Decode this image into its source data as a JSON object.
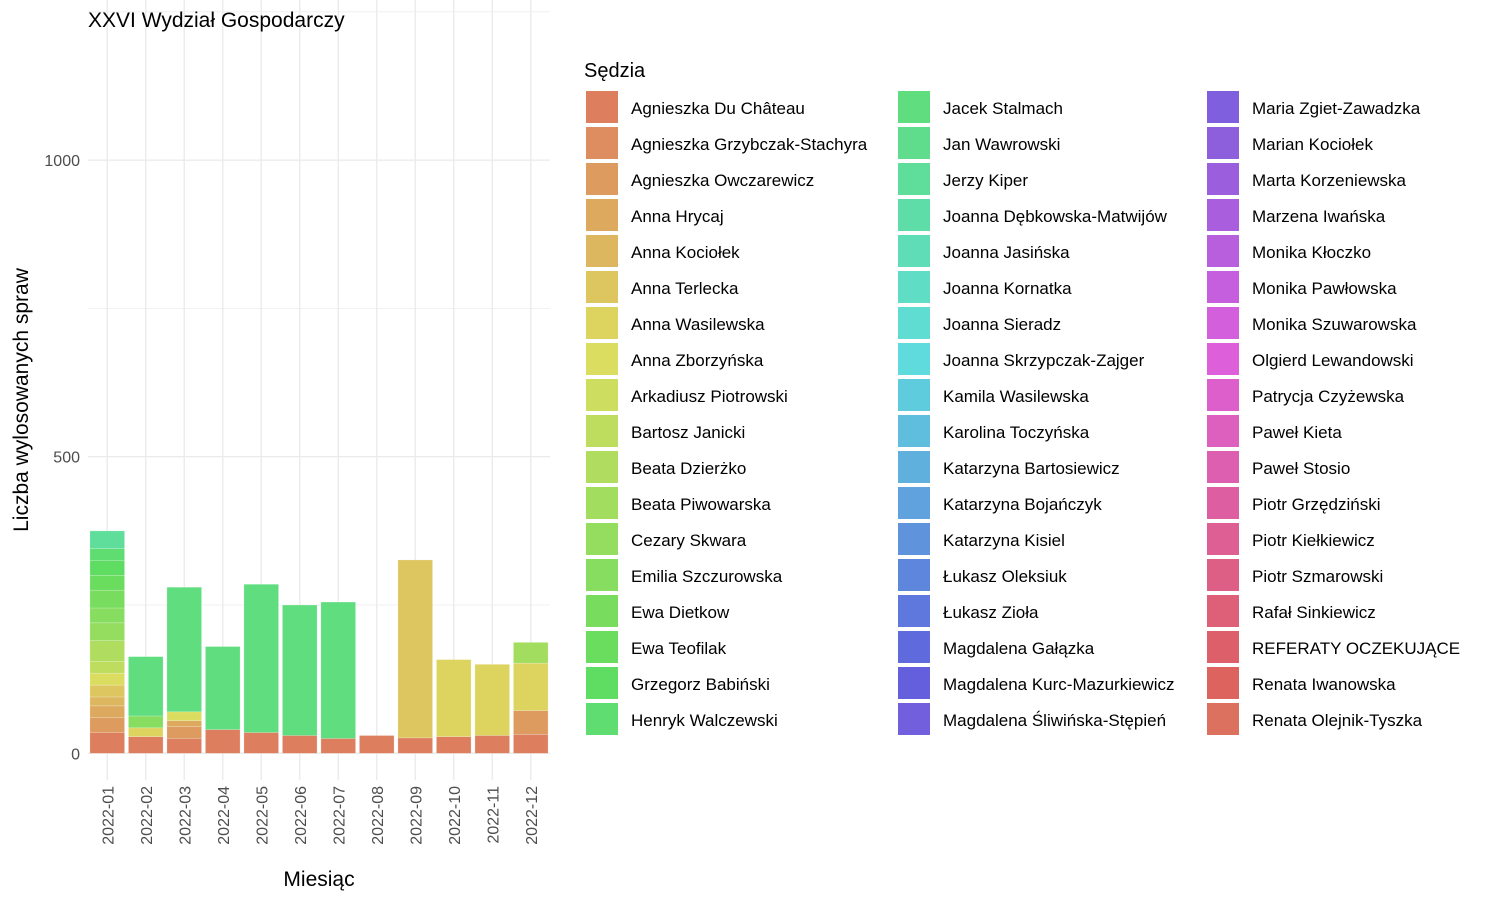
{
  "chart_data": {
    "type": "bar",
    "stacked": true,
    "title": "XXVI Wydział Gospodarczy",
    "xlabel": "Miesiąc",
    "ylabel": "Liczba wylosowanych spraw",
    "ylim": [
      -45,
      1270
    ],
    "yticks": [
      0,
      500,
      1000
    ],
    "grid": true,
    "legend_title": "Sędzia",
    "legend_position": "right",
    "categories": [
      "2022-01",
      "2022-02",
      "2022-03",
      "2022-04",
      "2022-05",
      "2022-06",
      "2022-07",
      "2022-08",
      "2022-09",
      "2022-10",
      "2022-11",
      "2022-12"
    ],
    "series": [
      {
        "name": "Agnieszka Du Château",
        "values": [
          35,
          28,
          25,
          40,
          35,
          30,
          25,
          30,
          26,
          28,
          30,
          32
        ]
      },
      {
        "name": "Agnieszka Grzybczak-Stachyra",
        "values": [
          0,
          0,
          0,
          0,
          0,
          0,
          0,
          0,
          0,
          0,
          0,
          0
        ]
      },
      {
        "name": "Agnieszka Owczarewicz",
        "values": [
          25,
          0,
          20,
          0,
          0,
          0,
          0,
          0,
          0,
          0,
          0,
          40
        ]
      },
      {
        "name": "Anna Hrycaj",
        "values": [
          20,
          0,
          10,
          0,
          0,
          0,
          0,
          0,
          0,
          0,
          0,
          0
        ]
      },
      {
        "name": "Anna Kociołek",
        "values": [
          15,
          0,
          0,
          0,
          0,
          0,
          0,
          0,
          0,
          0,
          0,
          0
        ]
      },
      {
        "name": "Anna Terlecka",
        "values": [
          20,
          0,
          0,
          0,
          0,
          0,
          0,
          0,
          300,
          0,
          0,
          0
        ]
      },
      {
        "name": "Anna Wasilewska",
        "values": [
          0,
          15,
          0,
          0,
          0,
          0,
          0,
          0,
          0,
          130,
          120,
          80
        ]
      },
      {
        "name": "Anna Zborzyńska",
        "values": [
          20,
          0,
          15,
          0,
          0,
          0,
          0,
          0,
          0,
          0,
          0,
          0
        ]
      },
      {
        "name": "Arkadiusz Piotrowski",
        "values": [
          0,
          0,
          0,
          0,
          0,
          0,
          0,
          0,
          0,
          0,
          0,
          0
        ]
      },
      {
        "name": "Bartosz Janicki",
        "values": [
          20,
          0,
          0,
          0,
          0,
          0,
          0,
          0,
          0,
          0,
          0,
          0
        ]
      },
      {
        "name": "Beata Dzierżko",
        "values": [
          35,
          0,
          0,
          0,
          0,
          0,
          0,
          0,
          0,
          0,
          0,
          0
        ]
      },
      {
        "name": "Beata Piwowarska",
        "values": [
          0,
          0,
          0,
          0,
          0,
          0,
          0,
          0,
          0,
          0,
          0,
          35
        ]
      },
      {
        "name": "Cezary Skwara",
        "values": [
          30,
          0,
          0,
          0,
          0,
          0,
          0,
          0,
          0,
          0,
          0,
          0
        ]
      },
      {
        "name": "Emilia Szczurowska",
        "values": [
          25,
          20,
          0,
          0,
          0,
          0,
          0,
          0,
          0,
          0,
          0,
          0
        ]
      },
      {
        "name": "Ewa Dietkow",
        "values": [
          30,
          0,
          0,
          0,
          0,
          0,
          0,
          0,
          0,
          0,
          0,
          0
        ]
      },
      {
        "name": "Ewa Teofilak",
        "values": [
          25,
          0,
          0,
          0,
          0,
          0,
          0,
          0,
          0,
          0,
          0,
          0
        ]
      },
      {
        "name": "Grzegorz Babiński",
        "values": [
          25,
          0,
          0,
          0,
          0,
          0,
          0,
          0,
          0,
          0,
          0,
          0
        ]
      },
      {
        "name": "Henryk Walczewski",
        "values": [
          20,
          0,
          0,
          0,
          0,
          0,
          0,
          0,
          0,
          0,
          0,
          0
        ]
      },
      {
        "name": "Jacek Stalmach",
        "values": [
          0,
          100,
          210,
          140,
          250,
          220,
          230,
          0,
          0,
          0,
          0,
          0
        ]
      },
      {
        "name": "Jan Wawrowski",
        "values": [
          0,
          0,
          0,
          0,
          0,
          0,
          0,
          0,
          0,
          0,
          0,
          0
        ]
      },
      {
        "name": "Jerzy Kiper",
        "values": [
          30,
          0,
          0,
          0,
          0,
          0,
          0,
          0,
          0,
          0,
          0,
          0
        ]
      },
      {
        "name": "Joanna Dębkowska-Matwijów",
        "values": [
          0,
          0,
          0,
          0,
          0,
          0,
          0,
          0,
          0,
          0,
          0,
          0
        ]
      },
      {
        "name": "Joanna Jasińska",
        "values": [
          0,
          0,
          0,
          0,
          0,
          0,
          0,
          0,
          0,
          0,
          0,
          0
        ]
      },
      {
        "name": "Joanna Kornatka",
        "values": [
          0,
          0,
          0,
          0,
          0,
          0,
          0,
          0,
          0,
          0,
          0,
          0
        ]
      },
      {
        "name": "Joanna Sieradz",
        "values": [
          0,
          0,
          0,
          0,
          0,
          0,
          0,
          0,
          0,
          0,
          0,
          0
        ]
      },
      {
        "name": "Joanna Skrzypczak-Zajger",
        "values": [
          0,
          0,
          0,
          0,
          0,
          0,
          0,
          0,
          0,
          0,
          0,
          0
        ]
      },
      {
        "name": "Kamila Wasilewska",
        "values": [
          0,
          0,
          0,
          0,
          0,
          0,
          0,
          0,
          0,
          0,
          0,
          0
        ]
      },
      {
        "name": "Karolina Toczyńska",
        "values": [
          0,
          0,
          0,
          0,
          0,
          0,
          0,
          0,
          0,
          0,
          0,
          0
        ]
      },
      {
        "name": "Katarzyna Bartosiewicz",
        "values": [
          0,
          0,
          0,
          0,
          0,
          0,
          0,
          0,
          0,
          0,
          0,
          0
        ]
      },
      {
        "name": "Katarzyna Bojańczyk",
        "values": [
          0,
          0,
          0,
          0,
          0,
          0,
          0,
          0,
          0,
          0,
          0,
          0
        ]
      },
      {
        "name": "Katarzyna Kisiel",
        "values": [
          0,
          0,
          0,
          0,
          0,
          0,
          0,
          0,
          0,
          0,
          0,
          0
        ]
      },
      {
        "name": "Łukasz Oleksiuk",
        "values": [
          0,
          0,
          0,
          0,
          0,
          0,
          0,
          0,
          0,
          0,
          0,
          0
        ]
      },
      {
        "name": "Łukasz Zioła",
        "values": [
          0,
          0,
          0,
          0,
          0,
          0,
          0,
          0,
          0,
          0,
          0,
          0
        ]
      },
      {
        "name": "Magdalena Gałązka",
        "values": [
          0,
          0,
          0,
          0,
          0,
          0,
          0,
          0,
          0,
          0,
          0,
          0
        ]
      },
      {
        "name": "Magdalena Kurc-Mazurkiewicz",
        "values": [
          0,
          0,
          0,
          0,
          0,
          0,
          0,
          0,
          0,
          0,
          0,
          0
        ]
      },
      {
        "name": "Magdalena Śliwińska-Stępień",
        "values": [
          0,
          0,
          0,
          0,
          0,
          0,
          0,
          0,
          0,
          0,
          0,
          0
        ]
      },
      {
        "name": "Maria Zgiet-Zawadzka",
        "values": [
          0,
          0,
          0,
          0,
          0,
          0,
          0,
          0,
          0,
          0,
          0,
          0
        ]
      },
      {
        "name": "Marian Kociołek",
        "values": [
          0,
          0,
          0,
          0,
          0,
          0,
          0,
          0,
          0,
          0,
          0,
          0
        ]
      },
      {
        "name": "Marta Korzeniewska",
        "values": [
          0,
          0,
          0,
          0,
          0,
          0,
          0,
          0,
          0,
          0,
          0,
          0
        ]
      },
      {
        "name": "Marzena Iwańska",
        "values": [
          0,
          0,
          0,
          0,
          0,
          0,
          0,
          0,
          0,
          0,
          0,
          0
        ]
      },
      {
        "name": "Monika Kłoczko",
        "values": [
          0,
          0,
          0,
          0,
          0,
          0,
          0,
          0,
          0,
          0,
          0,
          0
        ]
      },
      {
        "name": "Monika Pawłowska",
        "values": [
          0,
          0,
          0,
          0,
          0,
          0,
          0,
          0,
          0,
          0,
          0,
          0
        ]
      },
      {
        "name": "Monika Szuwarowska",
        "values": [
          0,
          0,
          0,
          0,
          0,
          0,
          0,
          0,
          0,
          0,
          0,
          0
        ]
      },
      {
        "name": "Olgierd Lewandowski",
        "values": [
          0,
          0,
          0,
          0,
          0,
          0,
          0,
          0,
          0,
          0,
          0,
          0
        ]
      },
      {
        "name": "Patrycja Czyżewska",
        "values": [
          0,
          0,
          0,
          0,
          0,
          0,
          0,
          0,
          0,
          0,
          0,
          0
        ]
      },
      {
        "name": "Paweł Kieta",
        "values": [
          0,
          0,
          0,
          0,
          0,
          0,
          0,
          0,
          0,
          0,
          0,
          0
        ]
      },
      {
        "name": "Paweł Stosio",
        "values": [
          0,
          0,
          0,
          0,
          0,
          0,
          0,
          0,
          0,
          0,
          0,
          0
        ]
      },
      {
        "name": "Piotr Grzędziński",
        "values": [
          0,
          0,
          0,
          0,
          0,
          0,
          0,
          0,
          0,
          0,
          0,
          0
        ]
      },
      {
        "name": "Piotr Kiełkiewicz",
        "values": [
          0,
          0,
          0,
          0,
          0,
          0,
          0,
          0,
          0,
          0,
          0,
          0
        ]
      },
      {
        "name": "Piotr Szmarowski",
        "values": [
          0,
          0,
          0,
          0,
          0,
          0,
          0,
          0,
          0,
          0,
          0,
          0
        ]
      },
      {
        "name": "Rafał Sinkiewicz",
        "values": [
          0,
          0,
          0,
          0,
          0,
          0,
          0,
          0,
          0,
          0,
          0,
          0
        ]
      },
      {
        "name": "REFERATY OCZEKUJĄCE",
        "values": [
          0,
          0,
          0,
          0,
          0,
          0,
          0,
          0,
          0,
          0,
          0,
          0
        ]
      },
      {
        "name": "Renata Iwanowska",
        "values": [
          0,
          0,
          0,
          0,
          0,
          0,
          0,
          0,
          0,
          0,
          0,
          0
        ]
      },
      {
        "name": "Renata Olejnik-Tyszka",
        "values": [
          0,
          0,
          0,
          0,
          0,
          0,
          0,
          0,
          0,
          0,
          0,
          0
        ]
      }
    ]
  }
}
